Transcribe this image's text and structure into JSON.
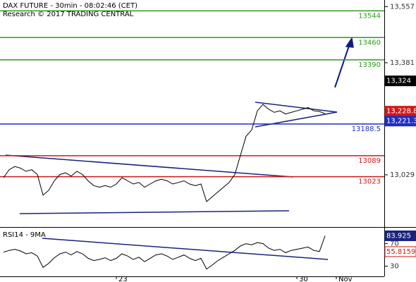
{
  "chart_data": [
    {
      "type": "line",
      "title": "DAX FUTURE - 30min - 08:02:46 (CET)",
      "subtitle": "Research © 2017 TRADING CENTRAL",
      "color": "#000000",
      "categories": [
        null,
        null,
        null,
        null,
        null,
        null,
        null,
        null,
        null,
        null,
        null,
        null,
        null,
        null,
        null,
        null,
        null,
        null,
        null,
        null,
        "23",
        null,
        null,
        null,
        null,
        null,
        null,
        null,
        null,
        null,
        null,
        null,
        null,
        null,
        null,
        null,
        null,
        null,
        null,
        null,
        null,
        null,
        null,
        null,
        null,
        null,
        null,
        null,
        null,
        null,
        null,
        null,
        "30",
        null,
        null,
        null,
        null,
        null,
        null,
        "Nov"
      ],
      "values": [
        13020,
        13045,
        13055,
        13050,
        13040,
        13045,
        13030,
        12965,
        12980,
        13010,
        13030,
        13035,
        13025,
        13040,
        13030,
        13010,
        12995,
        12990,
        12995,
        12990,
        13000,
        13020,
        13010,
        13000,
        13005,
        12990,
        13000,
        13010,
        13015,
        13010,
        13000,
        13005,
        13010,
        13000,
        12995,
        13000,
        12945,
        12960,
        12975,
        12990,
        13005,
        13030,
        13090,
        13150,
        13170,
        13230,
        13250,
        13235,
        13225,
        13230,
        13220,
        13225,
        13230,
        13235,
        13240,
        13230,
        13228,
        13221,
        null,
        null
      ],
      "ylim": [
        12865,
        13578
      ],
      "yticks": [
        {
          "value": 13557,
          "label": "13,557"
        },
        {
          "value": 13381,
          "label": "13,381"
        },
        {
          "value": 13029,
          "label": "13,029"
        }
      ],
      "levels": [
        {
          "value": 13544,
          "color": "#2e9a1e"
        },
        {
          "value": 13460,
          "color": "#2e9a1e"
        },
        {
          "value": 13390,
          "color": "#2e9a1e"
        },
        {
          "value": 13188.5,
          "color": "#1f2fc4"
        },
        {
          "value": 13089,
          "color": "#d01818"
        },
        {
          "value": 13023,
          "color": "#d01818"
        }
      ],
      "price_tags": [
        {
          "value": 13324,
          "label": "13,324",
          "color": "#000000"
        },
        {
          "value": 13228.8,
          "label": "13,228.8",
          "color": "#d01818"
        },
        {
          "value": 13221.3,
          "label": "13,221.3",
          "color": "#1f2fc4"
        }
      ]
    },
    {
      "type": "line",
      "title": "RSI14 - 9MA",
      "color": "#000000",
      "values": [
        55,
        58,
        60,
        57,
        52,
        54,
        48,
        28,
        35,
        45,
        52,
        55,
        50,
        56,
        52,
        44,
        40,
        42,
        45,
        40,
        44,
        52,
        48,
        42,
        46,
        38,
        44,
        50,
        52,
        48,
        42,
        46,
        50,
        44,
        40,
        44,
        25,
        32,
        40,
        46,
        52,
        58,
        66,
        70,
        68,
        72,
        70,
        62,
        58,
        60,
        54,
        58,
        60,
        62,
        64,
        58,
        56,
        83.925,
        null,
        null
      ],
      "ylim": [
        12,
        97
      ],
      "yticks": [
        70,
        30
      ],
      "price_tags": [
        {
          "value": 83.925,
          "color": "#1a237e"
        },
        {
          "value": 55.8159,
          "color": "#d01818"
        }
      ]
    }
  ]
}
